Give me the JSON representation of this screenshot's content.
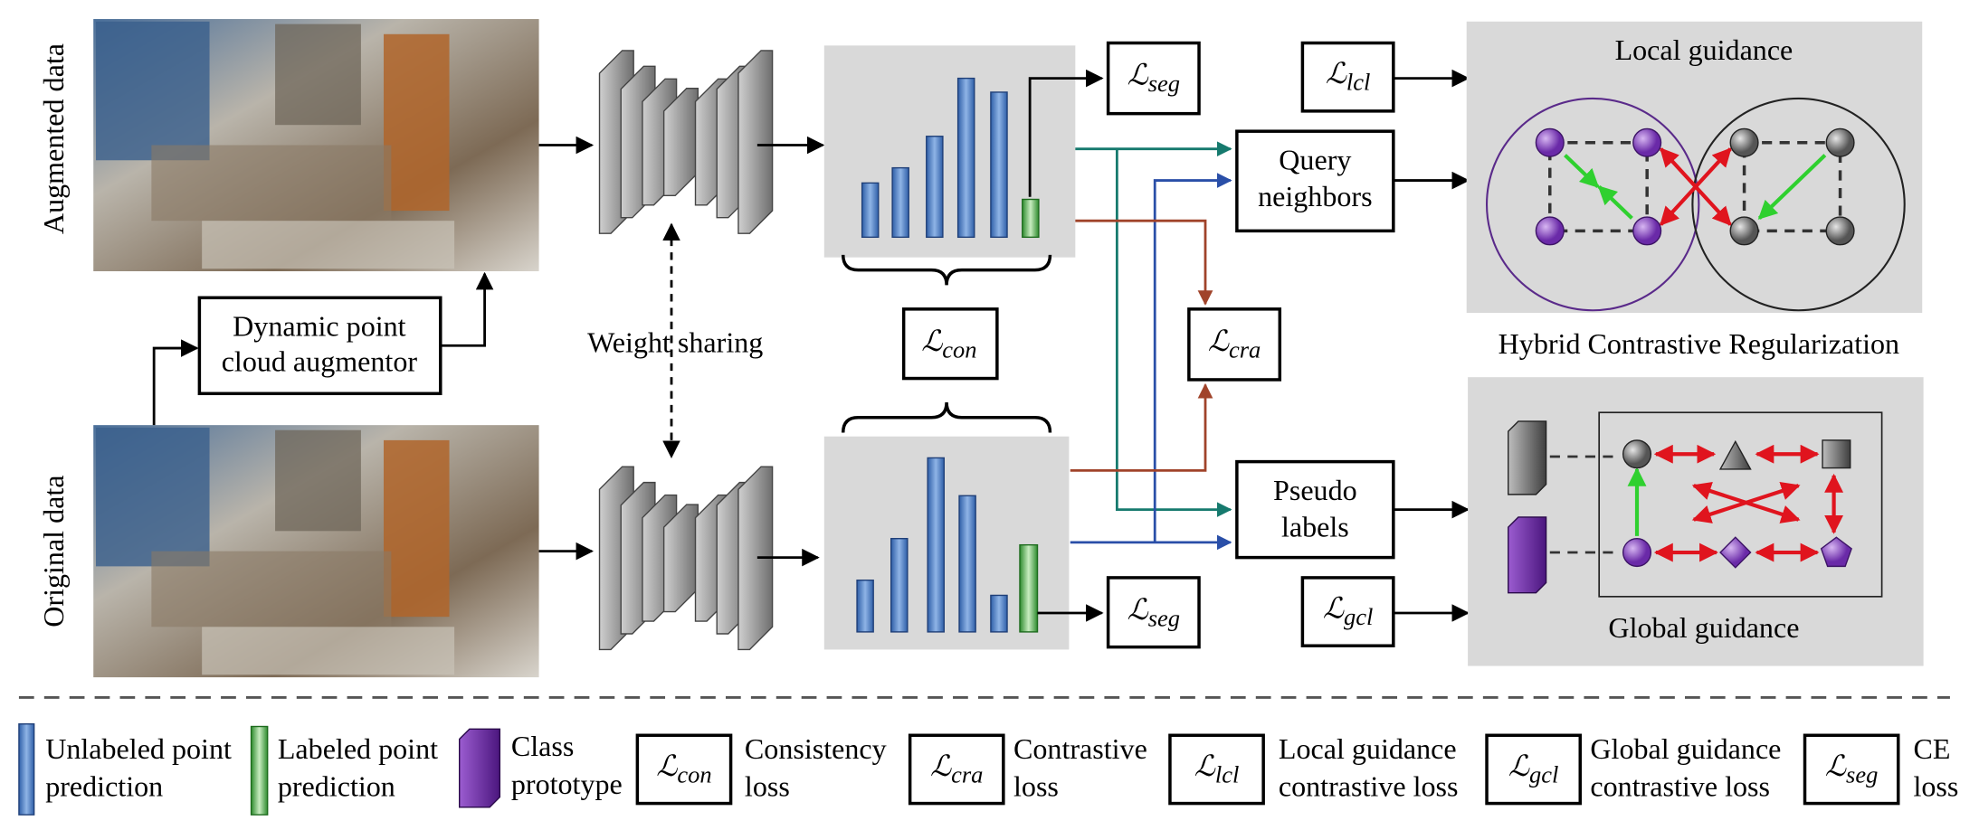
{
  "inputs": {
    "augmented": "Augmented data",
    "original": "Original data"
  },
  "augmentor": [
    "Dynamic point",
    "cloud augmentor"
  ],
  "weight_sharing": "Weight sharing",
  "losses": {
    "seg_top": {
      "symbol": "ℒ",
      "subscript": "seg"
    },
    "con": {
      "symbol": "ℒ",
      "subscript": "con"
    },
    "cra": {
      "symbol": "ℒ",
      "subscript": "cra"
    },
    "lcl": {
      "symbol": "ℒ",
      "subscript": "lcl"
    },
    "seg_bottom": {
      "symbol": "ℒ",
      "subscript": "seg"
    },
    "gcl": {
      "symbol": "ℒ",
      "subscript": "gcl"
    }
  },
  "query_neighbors": [
    "Query",
    "neighbors"
  ],
  "pseudo_labels": [
    "Pseudo",
    "labels"
  ],
  "local_guidance": "Local guidance",
  "hybrid": "Hybrid Contrastive Regularization",
  "global_guidance": "Global guidance",
  "legend": {
    "unlabeled": [
      "Unlabeled point",
      "prediction"
    ],
    "labeled": [
      "Labeled point",
      "prediction"
    ],
    "prototype": [
      "Class",
      "prototype"
    ],
    "con": {
      "symbol": "ℒ",
      "subscript": "con",
      "label": [
        "Consistency",
        "loss"
      ]
    },
    "cra": {
      "symbol": "ℒ",
      "subscript": "cra",
      "label": [
        "Contrastive",
        "loss"
      ]
    },
    "lcl": {
      "symbol": "ℒ",
      "subscript": "lcl",
      "label": [
        "Local guidance",
        "contrastive loss"
      ]
    },
    "gcl": {
      "symbol": "ℒ",
      "subscript": "gcl",
      "label": [
        "Global guidance",
        "contrastive loss"
      ]
    },
    "seg": {
      "symbol": "ℒ",
      "subscript": "seg",
      "label": [
        "CE",
        "loss"
      ]
    }
  }
}
